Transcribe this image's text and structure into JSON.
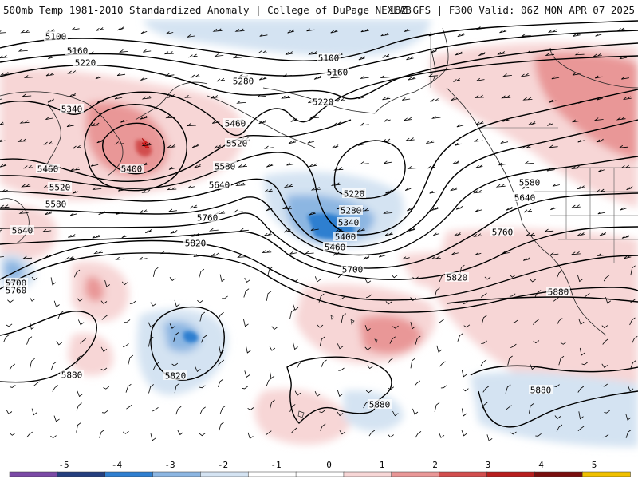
{
  "header": {
    "title": "500mb Temp 1981-2010 Standardized Anomaly | College of DuPage NEXLAB",
    "valid": "18Z GFS | F300 Valid: 06Z MON APR 07 2025"
  },
  "colors": {
    "anom_neg5": "#7b4aa6",
    "anom_neg4": "#243f7f",
    "anom_neg3": "#2f7fd0",
    "anom_neg2": "#8cb6e2",
    "anom_neg1": "#d4e3f2",
    "anom_zero": "#ffffff",
    "anom_pos1": "#f7d6d6",
    "anom_pos2": "#e99797",
    "anom_pos3": "#d24e4e",
    "anom_pos4": "#b81e1e",
    "anom_pos5": "#7a0f0f",
    "anom_pos6": "#f0c000"
  },
  "colorbar": {
    "labels": [
      "-5",
      "-4",
      "-3",
      "-2",
      "-1",
      "0",
      "1",
      "2",
      "3",
      "4",
      "5"
    ]
  },
  "contour_labels": [
    "5100",
    "5160",
    "5220",
    "5340",
    "5460",
    "5520",
    "5580",
    "5640",
    "5700",
    "5760",
    "5400",
    "5280",
    "5460",
    "5520",
    "5580",
    "5640",
    "5760",
    "5820",
    "5100",
    "5160",
    "5220",
    "5220",
    "5280",
    "5340",
    "5400",
    "5460",
    "5700",
    "5580",
    "5640",
    "5760",
    "5820",
    "5880",
    "5820",
    "5880",
    "5880",
    "5880"
  ]
}
